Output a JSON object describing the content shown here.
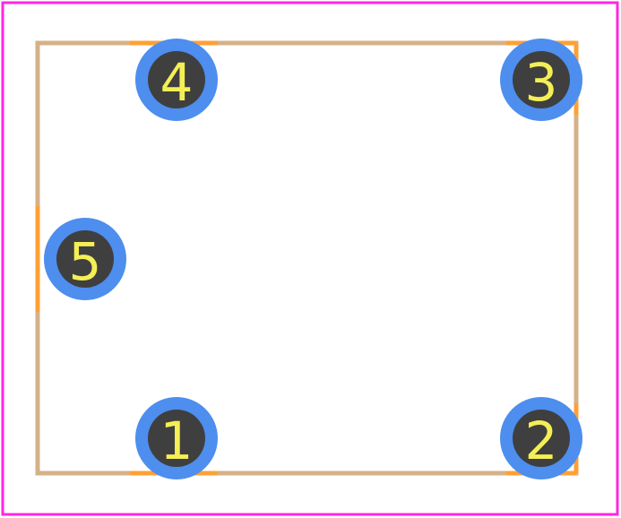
{
  "footprint": {
    "colors": {
      "background": "#ffffff",
      "courtyard": "#ff26e2",
      "silkscreen": "#d5b188",
      "fab_outline": "#ffa035",
      "pad_copper": "#4d8eef",
      "pad_hole": "#3f3f3f",
      "pad_label": "#f4ef55"
    },
    "pads": [
      {
        "id": "1",
        "label": "1"
      },
      {
        "id": "2",
        "label": "2"
      },
      {
        "id": "3",
        "label": "3"
      },
      {
        "id": "4",
        "label": "4"
      },
      {
        "id": "5",
        "label": "5"
      }
    ]
  }
}
